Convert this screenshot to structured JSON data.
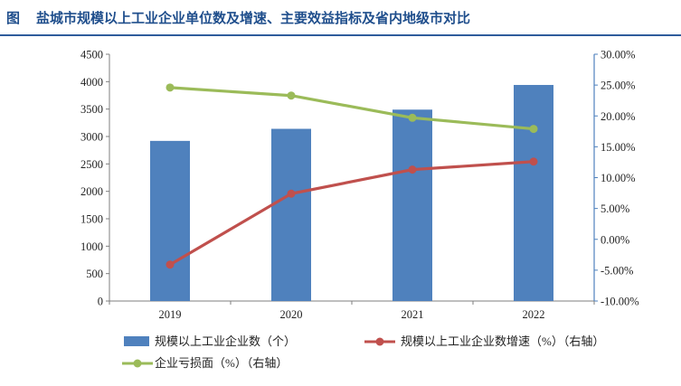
{
  "figure_label": "图",
  "title": "盐城市规模以上工业企业单位数及增速、主要效益指标及省内地级市对比",
  "colors": {
    "title": "#1f4e8c",
    "bar": "#4f81bd",
    "growth_line": "#c0504d",
    "loss_line": "#9bbb59",
    "axis": "#7f7f7f",
    "right_axis": "#4f81bd"
  },
  "chart_data": {
    "type": "bar",
    "categories": [
      "2019",
      "2020",
      "2021",
      "2022"
    ],
    "left_axis": {
      "ylim": [
        0,
        4500
      ],
      "ticks": [
        "0",
        "500",
        "1000",
        "1500",
        "2000",
        "2500",
        "3000",
        "3500",
        "4000",
        "4500"
      ]
    },
    "right_axis": {
      "ylim": [
        -10,
        30
      ],
      "ticks": [
        "-10.00%",
        "-5.00%",
        "0.00%",
        "5.00%",
        "10.00%",
        "15.00%",
        "20.00%",
        "25.00%",
        "30.00%"
      ]
    },
    "series": [
      {
        "name": "规模以上工业企业数（个）",
        "type": "bar",
        "axis": "left",
        "values": [
          2920,
          3140,
          3490,
          3940
        ]
      },
      {
        "name": "规模以上工业企业数增速（%）（右轴）",
        "type": "line",
        "axis": "right",
        "values": [
          -4.1,
          7.4,
          11.3,
          12.6
        ]
      },
      {
        "name": "企业亏损面（%）（右轴）",
        "type": "line",
        "axis": "right",
        "values": [
          24.6,
          23.3,
          19.7,
          17.9
        ]
      }
    ],
    "grid": false,
    "legend_position": "bottom"
  }
}
